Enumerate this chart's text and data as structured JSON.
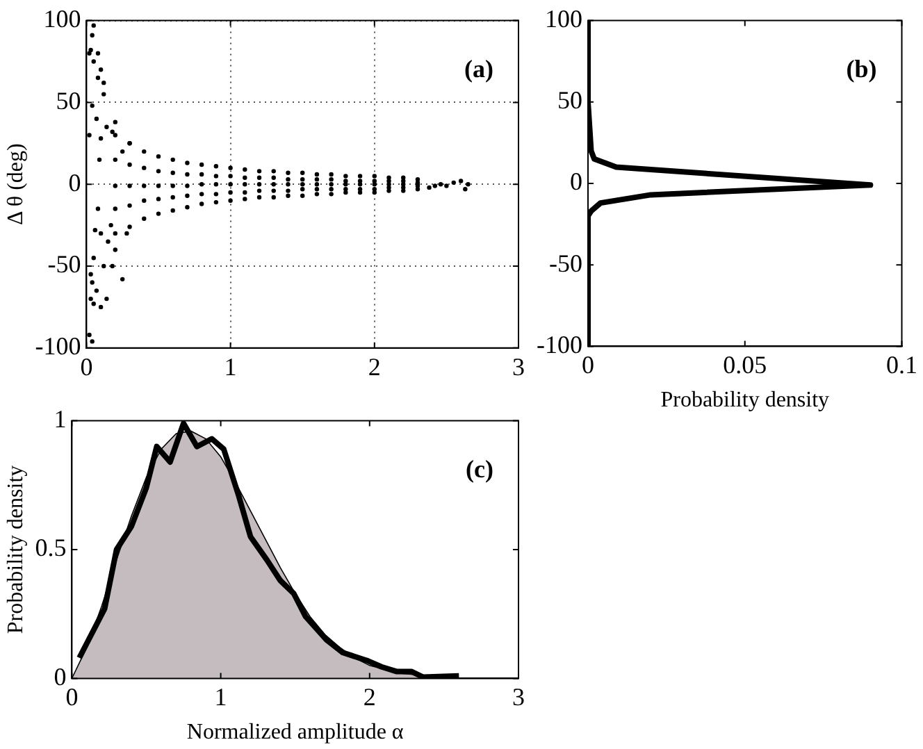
{
  "chart_data": [
    {
      "type": "scatter",
      "ylabel": "Δ θ (deg)",
      "xlim": [
        0,
        3
      ],
      "xticks": [
        0,
        1,
        2,
        3
      ],
      "ylim": [
        -100,
        100
      ],
      "yticks": [
        -100,
        -50,
        0,
        50,
        100
      ],
      "grid": true,
      "marker": "circle",
      "annotations": [
        "(a)"
      ],
      "series": [
        {
          "color": "#000000",
          "x": [
            0.05,
            0.04,
            0.03,
            0.02,
            0.08,
            0.05,
            0.1,
            0.08,
            0.12,
            0.04,
            0.12,
            0.07,
            0.14,
            0.02,
            0.1,
            0.18,
            0.25,
            0.06,
            0.1,
            0.15,
            0.05,
            0.12,
            0.18,
            0.25,
            0.04,
            0.07,
            0.03,
            0.14,
            0.1,
            0.05,
            0.02,
            0.04,
            0.03,
            0.2,
            0.17,
            0.08,
            0.09,
            0.2,
            0.3,
            0.28,
            0.2,
            0.2,
            0.2,
            0.2,
            0.2,
            0.3,
            0.3,
            0.3,
            0.3,
            0.3,
            0.4,
            0.4,
            0.4,
            0.4,
            0.4,
            0.5,
            0.5,
            0.5,
            0.5,
            0.5,
            0.6,
            0.6,
            0.6,
            0.6,
            0.6,
            0.7,
            0.7,
            0.7,
            0.7,
            0.7,
            0.8,
            0.8,
            0.8,
            0.8,
            0.8,
            0.9,
            0.9,
            0.9,
            0.9,
            0.9,
            1.0,
            1.0,
            1.0,
            1.0,
            1.0,
            1.1,
            1.1,
            1.1,
            1.1,
            1.1,
            1.2,
            1.2,
            1.2,
            1.2,
            1.2,
            1.3,
            1.3,
            1.3,
            1.3,
            1.3,
            1.4,
            1.4,
            1.4,
            1.4,
            1.4,
            1.5,
            1.5,
            1.5,
            1.5,
            1.5,
            1.6,
            1.6,
            1.6,
            1.6,
            1.6,
            1.7,
            1.7,
            1.7,
            1.7,
            1.7,
            1.8,
            1.8,
            1.8,
            1.8,
            1.8,
            1.9,
            1.9,
            1.9,
            1.9,
            1.9,
            2.0,
            2.0,
            2.0,
            2.0,
            2.0,
            2.1,
            2.1,
            2.1,
            2.1,
            2.1,
            2.2,
            2.2,
            2.2,
            2.2,
            2.2,
            2.3,
            2.3,
            2.3,
            2.3,
            2.3,
            2.38,
            2.42,
            2.46,
            2.5,
            2.55,
            2.6,
            2.63,
            2.65
          ],
          "values": [
            97,
            91,
            82,
            80,
            80,
            75,
            70,
            65,
            62,
            48,
            55,
            40,
            35,
            30,
            28,
            32,
            20,
            -28,
            -30,
            -35,
            -45,
            -50,
            -50,
            -58,
            -60,
            -65,
            -70,
            -70,
            -75,
            -73,
            -92,
            -96,
            -55,
            -40,
            -25,
            -15,
            15,
            38,
            25,
            -30,
            30,
            15,
            -1,
            -15,
            -30,
            25,
            12,
            -1,
            -13,
            -26,
            20,
            10,
            -1,
            -10,
            -21,
            17,
            8,
            -1,
            -9,
            -18,
            15,
            7,
            -1,
            -8,
            -16,
            13,
            6,
            -1,
            -7,
            -14,
            12,
            6,
            0,
            -6,
            -12,
            11,
            5,
            0,
            -6,
            -11,
            10,
            5,
            0,
            -5,
            -10,
            9,
            4,
            0,
            -5,
            -9,
            8,
            4,
            0,
            -4,
            -8,
            8,
            4,
            0,
            -4,
            -8,
            7,
            3,
            0,
            -4,
            -7,
            7,
            3,
            0,
            -3,
            -7,
            6,
            3,
            0,
            -3,
            -6,
            6,
            3,
            0,
            -3,
            -6,
            5,
            2,
            0,
            -3,
            -5,
            5,
            2,
            0,
            -3,
            -5,
            5,
            2,
            0,
            -3,
            -5,
            4,
            2,
            0,
            -2,
            -4,
            4,
            2,
            0,
            -2,
            -4,
            3,
            1,
            0,
            -1,
            -3,
            -2,
            -1,
            0,
            -1,
            1,
            2,
            -3,
            0
          ]
        }
      ]
    },
    {
      "type": "line",
      "xlabel": "Probability density",
      "xlim": [
        0,
        0.1
      ],
      "xticks": [
        0,
        0.05,
        0.1
      ],
      "ylim": [
        -100,
        100
      ],
      "yticks": [
        -100,
        -50,
        0,
        50,
        100
      ],
      "annotations": [
        "(b)"
      ],
      "series": [
        {
          "color": "#000000",
          "x": [
            0,
            0,
            0.001,
            0.002,
            0.009,
            0.09,
            0.02,
            0.004,
            0.001,
            0,
            0
          ],
          "values": [
            100,
            50,
            20,
            15,
            10,
            -1,
            -7,
            -12,
            -17,
            -20,
            -100
          ]
        }
      ]
    },
    {
      "type": "line",
      "xlabel": "Normalized amplitude α",
      "ylabel": "Probability density",
      "xlim": [
        0,
        3
      ],
      "xticks": [
        0,
        1,
        2,
        3
      ],
      "ylim": [
        0,
        1
      ],
      "yticks": [
        0,
        0.5,
        1
      ],
      "annotations": [
        "(c)"
      ],
      "series": [
        {
          "type": "area",
          "color": "#c4bcbf",
          "x": [
            0,
            0.1,
            0.2,
            0.3,
            0.4,
            0.5,
            0.6,
            0.7,
            0.8,
            0.9,
            1.0,
            1.1,
            1.2,
            1.3,
            1.4,
            1.5,
            1.6,
            1.7,
            1.8,
            1.9,
            2.0,
            2.2,
            2.4,
            2.6,
            2.8,
            3.0
          ],
          "values": [
            0,
            0.12,
            0.28,
            0.46,
            0.63,
            0.78,
            0.89,
            0.95,
            0.96,
            0.93,
            0.86,
            0.76,
            0.65,
            0.54,
            0.43,
            0.33,
            0.24,
            0.17,
            0.12,
            0.08,
            0.05,
            0.02,
            0.01,
            0,
            0,
            0
          ]
        },
        {
          "color": "#000000",
          "x": [
            0.05,
            0.22,
            0.3,
            0.4,
            0.5,
            0.57,
            0.66,
            0.75,
            0.84,
            0.94,
            1.02,
            1.12,
            1.2,
            1.31,
            1.4,
            1.49,
            1.57,
            1.71,
            1.82,
            1.98,
            2.08,
            2.18,
            2.28,
            2.36,
            2.6
          ],
          "values": [
            0.08,
            0.27,
            0.5,
            0.59,
            0.74,
            0.9,
            0.84,
            0.99,
            0.9,
            0.93,
            0.89,
            0.71,
            0.55,
            0.46,
            0.38,
            0.33,
            0.24,
            0.15,
            0.1,
            0.07,
            0.045,
            0.027,
            0.027,
            0.005,
            0.01
          ]
        }
      ]
    }
  ]
}
